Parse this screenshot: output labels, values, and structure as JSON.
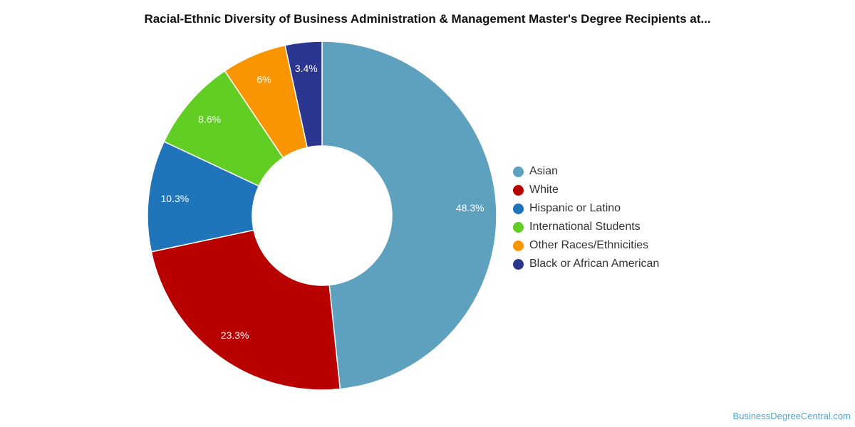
{
  "chart_data": {
    "type": "pie",
    "title": "Racial-Ethnic Diversity of Business Administration & Management Master's Degree Recipients at...",
    "categories": [
      "Asian",
      "White",
      "Hispanic or Latino",
      "International Students",
      "Other Races/Ethnicities",
      "Black or African American"
    ],
    "values": [
      48.3,
      23.3,
      10.3,
      8.6,
      6,
      3.4
    ],
    "value_labels": [
      "48.3%",
      "23.3%",
      "10.3%",
      "8.6%",
      "6%",
      "3.4%"
    ],
    "colors": [
      "#5ea1bf",
      "#b80000",
      "#1f74ba",
      "#62cd23",
      "#f99500",
      "#2a3690"
    ],
    "hole": "donut",
    "legend_position": "right"
  },
  "footer": {
    "source": "BusinessDegreeCentral.com"
  }
}
